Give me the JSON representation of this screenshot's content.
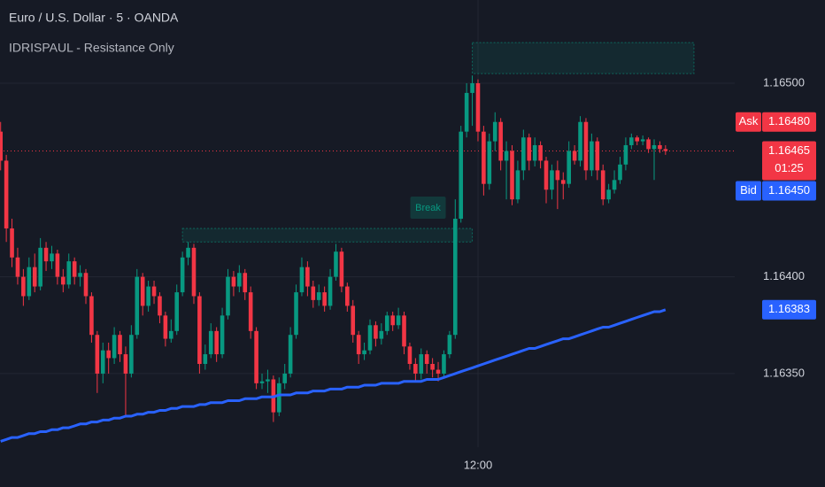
{
  "chart_data": {
    "type": "candlestick",
    "title": "Euro / U.S. Dollar · 5 · OANDA",
    "subtitle": "IDRISPAUL - Resistance Only",
    "up_color": "#089981",
    "down_color": "#f23645",
    "ylim": [
      1.16312,
      1.16543
    ],
    "yticks": [
      {
        "value": 1.165,
        "label": "1.16500"
      },
      {
        "value": 1.164,
        "label": "1.16400"
      },
      {
        "value": 1.1635,
        "label": "1.16350"
      }
    ],
    "grid": true,
    "categories": [
      null,
      null,
      null,
      null,
      null,
      null,
      null,
      null,
      null,
      null,
      null,
      null,
      null,
      null,
      null,
      null,
      null,
      null,
      null,
      null,
      null,
      null,
      null,
      null,
      null,
      null,
      null,
      null,
      null,
      null,
      null,
      null,
      null,
      null,
      null,
      null,
      null,
      null,
      null,
      null,
      null,
      null,
      null,
      null,
      null,
      null,
      null,
      null,
      null,
      null,
      null,
      null,
      null,
      null,
      null,
      null,
      null,
      null,
      null,
      null,
      null,
      null,
      null,
      null,
      null,
      null,
      null,
      null,
      null,
      null,
      null,
      null,
      null,
      null,
      null,
      null,
      null,
      null,
      null,
      null,
      null,
      null,
      null,
      null,
      "12:00",
      null,
      null,
      null,
      null,
      null,
      null,
      null,
      null,
      null,
      null,
      null,
      null,
      null,
      null,
      null,
      null,
      null,
      null,
      null,
      null,
      null,
      null,
      null,
      null,
      null,
      null,
      null,
      null,
      null,
      null,
      null,
      null,
      null
    ],
    "ohlc": [
      [
        1.16475,
        1.1648,
        1.16455,
        1.1646
      ],
      [
        1.1646,
        1.16463,
        1.16418,
        1.16425
      ],
      [
        1.16425,
        1.1643,
        1.16405,
        1.1641
      ],
      [
        1.1641,
        1.16415,
        1.16396,
        1.164
      ],
      [
        1.164,
        1.16404,
        1.16385,
        1.1639
      ],
      [
        1.1639,
        1.1641,
        1.16388,
        1.16405
      ],
      [
        1.16405,
        1.16412,
        1.16392,
        1.16395
      ],
      [
        1.16395,
        1.1642,
        1.16393,
        1.16415
      ],
      [
        1.16415,
        1.16418,
        1.16403,
        1.16408
      ],
      [
        1.16408,
        1.16416,
        1.16404,
        1.16412
      ],
      [
        1.16412,
        1.16414,
        1.16396,
        1.164
      ],
      [
        1.164,
        1.16404,
        1.16392,
        1.16396
      ],
      [
        1.16396,
        1.16412,
        1.16394,
        1.16408
      ],
      [
        1.16408,
        1.1641,
        1.16396,
        1.164
      ],
      [
        1.164,
        1.16406,
        1.16395,
        1.16402
      ],
      [
        1.16402,
        1.16404,
        1.16386,
        1.1639
      ],
      [
        1.1639,
        1.16392,
        1.16366,
        1.1637
      ],
      [
        1.1637,
        1.16372,
        1.1634,
        1.1635
      ],
      [
        1.1635,
        1.16366,
        1.16345,
        1.16362
      ],
      [
        1.16362,
        1.16366,
        1.1635,
        1.16358
      ],
      [
        1.16358,
        1.16374,
        1.16355,
        1.1637
      ],
      [
        1.1637,
        1.16372,
        1.16356,
        1.1636
      ],
      [
        1.1636,
        1.16364,
        1.16328,
        1.1635
      ],
      [
        1.1635,
        1.16375,
        1.16348,
        1.1637
      ],
      [
        1.1637,
        1.16404,
        1.16368,
        1.164
      ],
      [
        1.164,
        1.16402,
        1.1638,
        1.16385
      ],
      [
        1.16385,
        1.16398,
        1.16382,
        1.16395
      ],
      [
        1.16395,
        1.16398,
        1.16386,
        1.1639
      ],
      [
        1.1639,
        1.16392,
        1.16376,
        1.1638
      ],
      [
        1.1638,
        1.16382,
        1.16364,
        1.16368
      ],
      [
        1.16368,
        1.16378,
        1.16366,
        1.16372
      ],
      [
        1.16372,
        1.16396,
        1.1637,
        1.16392
      ],
      [
        1.16392,
        1.16413,
        1.1639,
        1.1641
      ],
      [
        1.1641,
        1.16418,
        1.16406,
        1.16415
      ],
      [
        1.16415,
        1.16417,
        1.16386,
        1.1639
      ],
      [
        1.1639,
        1.16392,
        1.1635,
        1.16355
      ],
      [
        1.16355,
        1.16365,
        1.16352,
        1.1636
      ],
      [
        1.1636,
        1.16376,
        1.16358,
        1.16372
      ],
      [
        1.16372,
        1.16374,
        1.16356,
        1.1636
      ],
      [
        1.1636,
        1.16384,
        1.16358,
        1.1638
      ],
      [
        1.1638,
        1.16404,
        1.16378,
        1.164
      ],
      [
        1.164,
        1.16403,
        1.1639,
        1.16395
      ],
      [
        1.16395,
        1.16406,
        1.16392,
        1.16402
      ],
      [
        1.16402,
        1.16404,
        1.16388,
        1.16392
      ],
      [
        1.16392,
        1.16395,
        1.16368,
        1.16372
      ],
      [
        1.16372,
        1.16374,
        1.16342,
        1.16345
      ],
      [
        1.16345,
        1.1635,
        1.16342,
        1.16346
      ],
      [
        1.16346,
        1.16352,
        1.1634,
        1.16347
      ],
      [
        1.16347,
        1.16349,
        1.16325,
        1.1633
      ],
      [
        1.1633,
        1.16348,
        1.16328,
        1.16345
      ],
      [
        1.16345,
        1.16355,
        1.16342,
        1.1635
      ],
      [
        1.1635,
        1.16374,
        1.16348,
        1.1637
      ],
      [
        1.1637,
        1.16396,
        1.16368,
        1.16392
      ],
      [
        1.16392,
        1.1641,
        1.1639,
        1.16405
      ],
      [
        1.16405,
        1.16408,
        1.1639,
        1.16395
      ],
      [
        1.16395,
        1.16398,
        1.16384,
        1.16388
      ],
      [
        1.16388,
        1.16396,
        1.16385,
        1.16392
      ],
      [
        1.16392,
        1.16395,
        1.16382,
        1.16385
      ],
      [
        1.16385,
        1.16404,
        1.16383,
        1.164
      ],
      [
        1.164,
        1.16417,
        1.16398,
        1.16413
      ],
      [
        1.16413,
        1.16415,
        1.16392,
        1.16395
      ],
      [
        1.16395,
        1.16397,
        1.16382,
        1.16385
      ],
      [
        1.16385,
        1.16388,
        1.16366,
        1.1637
      ],
      [
        1.1637,
        1.16372,
        1.16355,
        1.1636
      ],
      [
        1.1636,
        1.16366,
        1.16357,
        1.16362
      ],
      [
        1.16362,
        1.16378,
        1.1636,
        1.16375
      ],
      [
        1.16375,
        1.16377,
        1.16364,
        1.16368
      ],
      [
        1.16368,
        1.16376,
        1.16365,
        1.16372
      ],
      [
        1.16372,
        1.16382,
        1.1637,
        1.1638
      ],
      [
        1.1638,
        1.16382,
        1.16372,
        1.16375
      ],
      [
        1.16375,
        1.16384,
        1.16373,
        1.1638
      ],
      [
        1.1638,
        1.16382,
        1.1636,
        1.16364
      ],
      [
        1.16364,
        1.16366,
        1.16352,
        1.16355
      ],
      [
        1.16355,
        1.16358,
        1.16346,
        1.1635
      ],
      [
        1.1635,
        1.16363,
        1.16347,
        1.1636
      ],
      [
        1.1636,
        1.16362,
        1.1635,
        1.16355
      ],
      [
        1.16355,
        1.16358,
        1.16348,
        1.16352
      ],
      [
        1.16352,
        1.16356,
        1.16346,
        1.1635
      ],
      [
        1.1635,
        1.16362,
        1.16348,
        1.1636
      ],
      [
        1.1636,
        1.16372,
        1.16358,
        1.1637
      ],
      [
        1.1637,
        1.1644,
        1.16368,
        1.1643
      ],
      [
        1.1643,
        1.16478,
        1.16428,
        1.16475
      ],
      [
        1.16475,
        1.165,
        1.16472,
        1.16495
      ],
      [
        1.16495,
        1.16504,
        1.16478,
        1.165
      ],
      [
        1.165,
        1.16502,
        1.1647,
        1.16475
      ],
      [
        1.16475,
        1.16478,
        1.16442,
        1.16448
      ],
      [
        1.16448,
        1.16474,
        1.16445,
        1.1647
      ],
      [
        1.1647,
        1.16485,
        1.16465,
        1.1648
      ],
      [
        1.1648,
        1.16482,
        1.16455,
        1.1646
      ],
      [
        1.1646,
        1.1647,
        1.1644,
        1.16465
      ],
      [
        1.16465,
        1.16468,
        1.16437,
        1.1644
      ],
      [
        1.1644,
        1.1646,
        1.16438,
        1.16455
      ],
      [
        1.16455,
        1.16476,
        1.1645,
        1.16472
      ],
      [
        1.16472,
        1.16474,
        1.16455,
        1.1646
      ],
      [
        1.1646,
        1.16472,
        1.16457,
        1.16468
      ],
      [
        1.16468,
        1.1647,
        1.16456,
        1.1646
      ],
      [
        1.1646,
        1.16462,
        1.16438,
        1.16445
      ],
      [
        1.16445,
        1.16458,
        1.1644,
        1.16455
      ],
      [
        1.16455,
        1.1646,
        1.16435,
        1.1645
      ],
      [
        1.1645,
        1.16454,
        1.1644,
        1.16448
      ],
      [
        1.16448,
        1.1647,
        1.16446,
        1.16465
      ],
      [
        1.16465,
        1.16468,
        1.16458,
        1.1646
      ],
      [
        1.1646,
        1.16483,
        1.16457,
        1.1648
      ],
      [
        1.1648,
        1.16482,
        1.1645,
        1.16455
      ],
      [
        1.16455,
        1.16474,
        1.16452,
        1.1647
      ],
      [
        1.1647,
        1.16472,
        1.1645,
        1.16455
      ],
      [
        1.16455,
        1.16458,
        1.16437,
        1.1644
      ],
      [
        1.1644,
        1.16448,
        1.16438,
        1.16445
      ],
      [
        1.16445,
        1.16455,
        1.16443,
        1.1645
      ],
      [
        1.1645,
        1.16462,
        1.16448,
        1.16458
      ],
      [
        1.16458,
        1.16472,
        1.16455,
        1.16468
      ],
      [
        1.16468,
        1.16474,
        1.16466,
        1.16472
      ],
      [
        1.16472,
        1.16473,
        1.16468,
        1.1647
      ],
      [
        1.1647,
        1.16473,
        1.16468,
        1.16471
      ],
      [
        1.16471,
        1.16472,
        1.16464,
        1.16466
      ],
      [
        1.16466,
        1.16471,
        1.1645,
        1.16468
      ],
      [
        1.16468,
        1.1647,
        1.16464,
        1.16466
      ],
      [
        1.16466,
        1.16468,
        1.16463,
        1.16465
      ]
    ],
    "ma": {
      "color": "#2962ff",
      "values": [
        1.16315,
        1.16316,
        1.16317,
        1.16317,
        1.16318,
        1.16319,
        1.16319,
        1.1632,
        1.1632,
        1.16321,
        1.16321,
        1.16322,
        1.16322,
        1.16323,
        1.16324,
        1.16324,
        1.16325,
        1.16325,
        1.16326,
        1.16326,
        1.16327,
        1.16327,
        1.16328,
        1.16328,
        1.16329,
        1.16329,
        1.1633,
        1.1633,
        1.16331,
        1.16331,
        1.16332,
        1.16332,
        1.16333,
        1.16333,
        1.16333,
        1.16334,
        1.16334,
        1.16335,
        1.16335,
        1.16335,
        1.16336,
        1.16336,
        1.16336,
        1.16337,
        1.16337,
        1.16337,
        1.16338,
        1.16338,
        1.16338,
        1.16339,
        1.16339,
        1.16339,
        1.1634,
        1.1634,
        1.1634,
        1.16341,
        1.16341,
        1.16341,
        1.16342,
        1.16342,
        1.16342,
        1.16343,
        1.16343,
        1.16343,
        1.16344,
        1.16344,
        1.16344,
        1.16345,
        1.16345,
        1.16345,
        1.16345,
        1.16346,
        1.16346,
        1.16346,
        1.16346,
        1.16347,
        1.16347,
        1.16347,
        1.16348,
        1.16349,
        1.1635,
        1.16351,
        1.16352,
        1.16353,
        1.16354,
        1.16355,
        1.16356,
        1.16357,
        1.16358,
        1.16359,
        1.1636,
        1.16361,
        1.16362,
        1.16363,
        1.16363,
        1.16364,
        1.16365,
        1.16366,
        1.16367,
        1.16368,
        1.16368,
        1.16369,
        1.1637,
        1.16371,
        1.16372,
        1.16373,
        1.16374,
        1.16374,
        1.16375,
        1.16376,
        1.16377,
        1.16378,
        1.16379,
        1.1638,
        1.16381,
        1.16382,
        1.16382,
        1.16383
      ]
    },
    "zones": [
      {
        "top": 1.16521,
        "bottom": 1.16505,
        "start": 83,
        "end": 122
      },
      {
        "top": 1.16425,
        "bottom": 1.16418,
        "start": 32,
        "end": 83,
        "label": "Break"
      }
    ],
    "markers": [
      {
        "name": "Ask",
        "value": 1.1648,
        "value_label": "1.16480",
        "color": "#f23645"
      },
      {
        "value": 1.16465,
        "value_label": "1.16465",
        "countdown": "01:25",
        "color": "#f23645"
      },
      {
        "name": "Bid",
        "value": 1.1645,
        "value_label": "1.16450",
        "color": "#2962ff"
      },
      {
        "value": 1.16383,
        "value_label": "1.16383",
        "color": "#2962ff"
      }
    ]
  }
}
